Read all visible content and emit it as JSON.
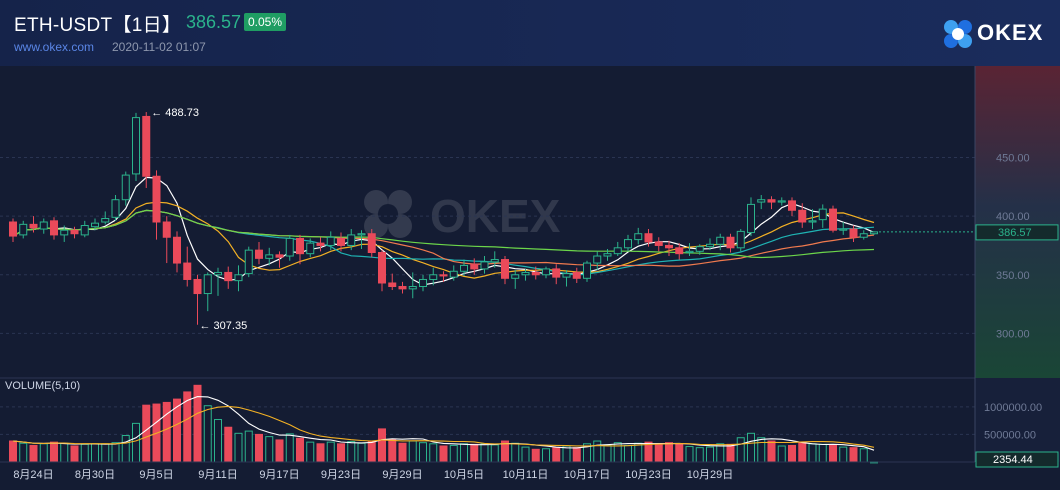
{
  "header": {
    "symbol": "ETH-USDT【1日】",
    "last_price": "386.57",
    "change": "0.05%",
    "website": "www.okex.com",
    "timestamp": "2020-11-02 01:07",
    "logo_text": "OKEX",
    "watermark_text": "OKEX"
  },
  "colors": {
    "up": "#2bb38c",
    "down": "#ea4a5a",
    "ma5": "#ffffff",
    "ma10": "#f3b125",
    "ma20": "#1fb3b3",
    "ma30": "#f07a4e",
    "ma60": "#6cd64a"
  },
  "price_axis": {
    "ticks": [
      "450.00",
      "400.00",
      "350.00",
      "300.00"
    ],
    "current": "386.57"
  },
  "annotations": {
    "high": "488.73",
    "low": "307.35"
  },
  "volume": {
    "label": "VOLUME(5,10)",
    "ticks": [
      "1000000.00",
      "500000.00"
    ],
    "current": "2354.44"
  },
  "x_axis": {
    "labels": [
      "8月24日",
      "8月30日",
      "9月5日",
      "9月11日",
      "9月17日",
      "9月23日",
      "9月29日",
      "10月5日",
      "10月11日",
      "10月17日",
      "10月23日",
      "10月29日"
    ]
  },
  "chart_data": {
    "type": "candlestick",
    "start_date": "2020-08-22",
    "price_ylim": [
      262,
      528
    ],
    "volume_ylim": [
      0,
      1450000
    ],
    "candles": [
      [
        395,
        383,
        398,
        378,
        380000
      ],
      [
        384,
        393,
        396,
        381,
        340000
      ],
      [
        393,
        390,
        400,
        386,
        300000
      ],
      [
        389,
        395,
        398,
        385,
        330000
      ],
      [
        396,
        384,
        399,
        380,
        360000
      ],
      [
        384,
        388,
        392,
        378,
        340000
      ],
      [
        388,
        385,
        391,
        381,
        290000
      ],
      [
        384,
        392,
        396,
        382,
        320000
      ],
      [
        391,
        394,
        398,
        388,
        330000
      ],
      [
        395,
        398,
        404,
        393,
        330000
      ],
      [
        399,
        414,
        418,
        396,
        350000
      ],
      [
        414,
        435,
        438,
        409,
        480000
      ],
      [
        436,
        484,
        488,
        430,
        700000
      ],
      [
        485,
        434,
        488.73,
        424,
        1030000
      ],
      [
        434,
        395,
        439,
        380,
        1050000
      ],
      [
        395,
        382,
        400,
        360,
        1080000
      ],
      [
        382,
        360,
        387,
        352,
        1140000
      ],
      [
        360,
        346,
        374,
        340,
        1270000
      ],
      [
        346,
        334,
        350,
        307.35,
        1390000
      ],
      [
        334,
        350,
        352,
        319,
        1020000
      ],
      [
        350,
        352,
        356,
        332,
        770000
      ],
      [
        352,
        345,
        357,
        338,
        630000
      ],
      [
        345,
        350,
        358,
        336,
        520000
      ],
      [
        351,
        371,
        374,
        348,
        560000
      ],
      [
        371,
        364,
        378,
        359,
        500000
      ],
      [
        364,
        367,
        373,
        358,
        460000
      ],
      [
        367,
        365,
        370,
        356,
        400000
      ],
      [
        366,
        381,
        384,
        362,
        510000
      ],
      [
        381,
        368,
        384,
        359,
        430000
      ],
      [
        368,
        377,
        381,
        365,
        360000
      ],
      [
        377,
        375,
        382,
        370,
        330000
      ],
      [
        375,
        382,
        387,
        371,
        360000
      ],
      [
        381,
        375,
        386,
        370,
        330000
      ],
      [
        375,
        384,
        389,
        371,
        370000
      ],
      [
        384,
        385,
        388,
        372,
        340000
      ],
      [
        385,
        369,
        389,
        365,
        380000
      ],
      [
        369,
        343,
        371,
        336,
        600000
      ],
      [
        343,
        340,
        351,
        337,
        410000
      ],
      [
        340,
        338,
        344,
        334,
        340000
      ],
      [
        338,
        340,
        352,
        330,
        380000
      ],
      [
        340,
        346,
        350,
        336,
        350000
      ],
      [
        346,
        350,
        356,
        341,
        330000
      ],
      [
        350,
        349,
        353,
        344,
        290000
      ],
      [
        348,
        353,
        358,
        345,
        300000
      ],
      [
        353,
        358,
        363,
        349,
        330000
      ],
      [
        359,
        355,
        364,
        350,
        320000
      ],
      [
        355,
        361,
        366,
        351,
        330000
      ],
      [
        361,
        363,
        370,
        356,
        310000
      ],
      [
        363,
        347,
        366,
        342,
        380000
      ],
      [
        347,
        350,
        354,
        338,
        340000
      ],
      [
        350,
        352,
        355,
        345,
        270000
      ],
      [
        352,
        350,
        357,
        346,
        230000
      ],
      [
        350,
        355,
        357,
        347,
        240000
      ],
      [
        355,
        348,
        359,
        342,
        260000
      ],
      [
        348,
        351,
        354,
        340,
        290000
      ],
      [
        352,
        347,
        356,
        343,
        260000
      ],
      [
        347,
        360,
        362,
        344,
        330000
      ],
      [
        360,
        366,
        370,
        354,
        380000
      ],
      [
        366,
        368,
        372,
        362,
        310000
      ],
      [
        368,
        373,
        378,
        366,
        350000
      ],
      [
        373,
        380,
        384,
        370,
        300000
      ],
      [
        380,
        385,
        390,
        376,
        340000
      ],
      [
        385,
        378,
        389,
        374,
        360000
      ],
      [
        378,
        375,
        382,
        370,
        320000
      ],
      [
        375,
        373,
        379,
        366,
        350000
      ],
      [
        373,
        368,
        377,
        363,
        320000
      ],
      [
        369,
        370,
        377,
        366,
        280000
      ],
      [
        370,
        374,
        376,
        367,
        260000
      ],
      [
        374,
        376,
        381,
        371,
        270000
      ],
      [
        376,
        382,
        385,
        371,
        330000
      ],
      [
        382,
        373,
        385,
        369,
        320000
      ],
      [
        373,
        387,
        389,
        370,
        440000
      ],
      [
        386,
        410,
        416,
        383,
        520000
      ],
      [
        412,
        414,
        418,
        406,
        440000
      ],
      [
        414,
        412,
        417,
        406,
        380000
      ],
      [
        412,
        413,
        416,
        409,
        290000
      ],
      [
        413,
        405,
        416,
        400,
        300000
      ],
      [
        405,
        395,
        411,
        390,
        350000
      ],
      [
        395,
        396,
        406,
        389,
        330000
      ],
      [
        397,
        406,
        410,
        390,
        320000
      ],
      [
        406,
        388,
        409,
        386,
        300000
      ],
      [
        388,
        389,
        395,
        384,
        270000
      ],
      [
        389,
        382,
        392,
        378,
        260000
      ],
      [
        382,
        385,
        388,
        380,
        240000
      ],
      [
        385,
        386.57,
        387,
        384,
        2354.44
      ]
    ],
    "ma_periods": [
      5,
      10,
      20,
      30,
      60
    ],
    "volume_ma_periods": [
      5,
      10
    ]
  }
}
